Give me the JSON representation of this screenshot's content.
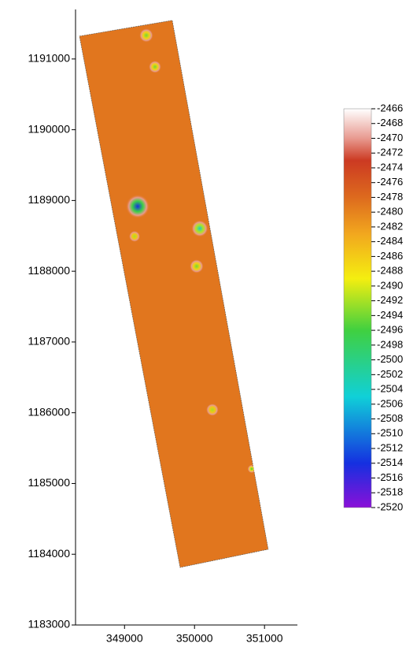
{
  "chart_data": {
    "type": "heatmap",
    "xlim": [
      348300,
      351470
    ],
    "ylim": [
      1183000,
      1191700
    ],
    "xticks": [
      349000,
      350000,
      351000
    ],
    "yticks": [
      1183000,
      1184000,
      1185000,
      1186000,
      1187000,
      1188000,
      1189000,
      1190000,
      1191000
    ],
    "strip": {
      "x": [
        348356,
        349682,
        351053,
        349794
      ],
      "y": [
        1191323,
        1191546,
        1184070,
        1183813
      ]
    },
    "base_value": -2479,
    "features": [
      {
        "x": 349188,
        "y": 1188916,
        "value": -2514,
        "radius": 170
      },
      {
        "x": 350075,
        "y": 1188604,
        "value": -2504,
        "radius": 120
      },
      {
        "x": 349311,
        "y": 1191334,
        "value": -2494,
        "radius": 100
      },
      {
        "x": 349435,
        "y": 1190889,
        "value": -2494,
        "radius": 90
      },
      {
        "x": 350030,
        "y": 1188070,
        "value": -2494,
        "radius": 100
      },
      {
        "x": 349143,
        "y": 1188493,
        "value": -2492,
        "radius": 80
      },
      {
        "x": 350255,
        "y": 1186042,
        "value": -2492,
        "radius": 90
      },
      {
        "x": 350817,
        "y": 1185206,
        "value": -2496,
        "radius": 60
      }
    ],
    "colorbar": {
      "lim": [
        -2520,
        -2466
      ],
      "ticks": [
        -2466,
        -2468,
        -2470,
        -2472,
        -2474,
        -2476,
        -2478,
        -2480,
        -2482,
        -2484,
        -2486,
        -2488,
        -2490,
        -2492,
        -2494,
        -2496,
        -2498,
        -2500,
        -2502,
        -2504,
        -2506,
        -2508,
        -2510,
        -2512,
        -2514,
        -2516,
        -2518,
        -2520
      ]
    },
    "colormap": [
      {
        "value": -2466,
        "color": "#ffffff"
      },
      {
        "value": -2470,
        "color": "#e89a90"
      },
      {
        "value": -2473,
        "color": "#cc3a22"
      },
      {
        "value": -2478,
        "color": "#dd6a1e"
      },
      {
        "value": -2483,
        "color": "#f2a81e"
      },
      {
        "value": -2489,
        "color": "#f4ee10"
      },
      {
        "value": -2496,
        "color": "#40d040"
      },
      {
        "value": -2505,
        "color": "#10d0d8"
      },
      {
        "value": -2514,
        "color": "#1530e0"
      },
      {
        "value": -2520,
        "color": "#8a10d8"
      }
    ]
  }
}
